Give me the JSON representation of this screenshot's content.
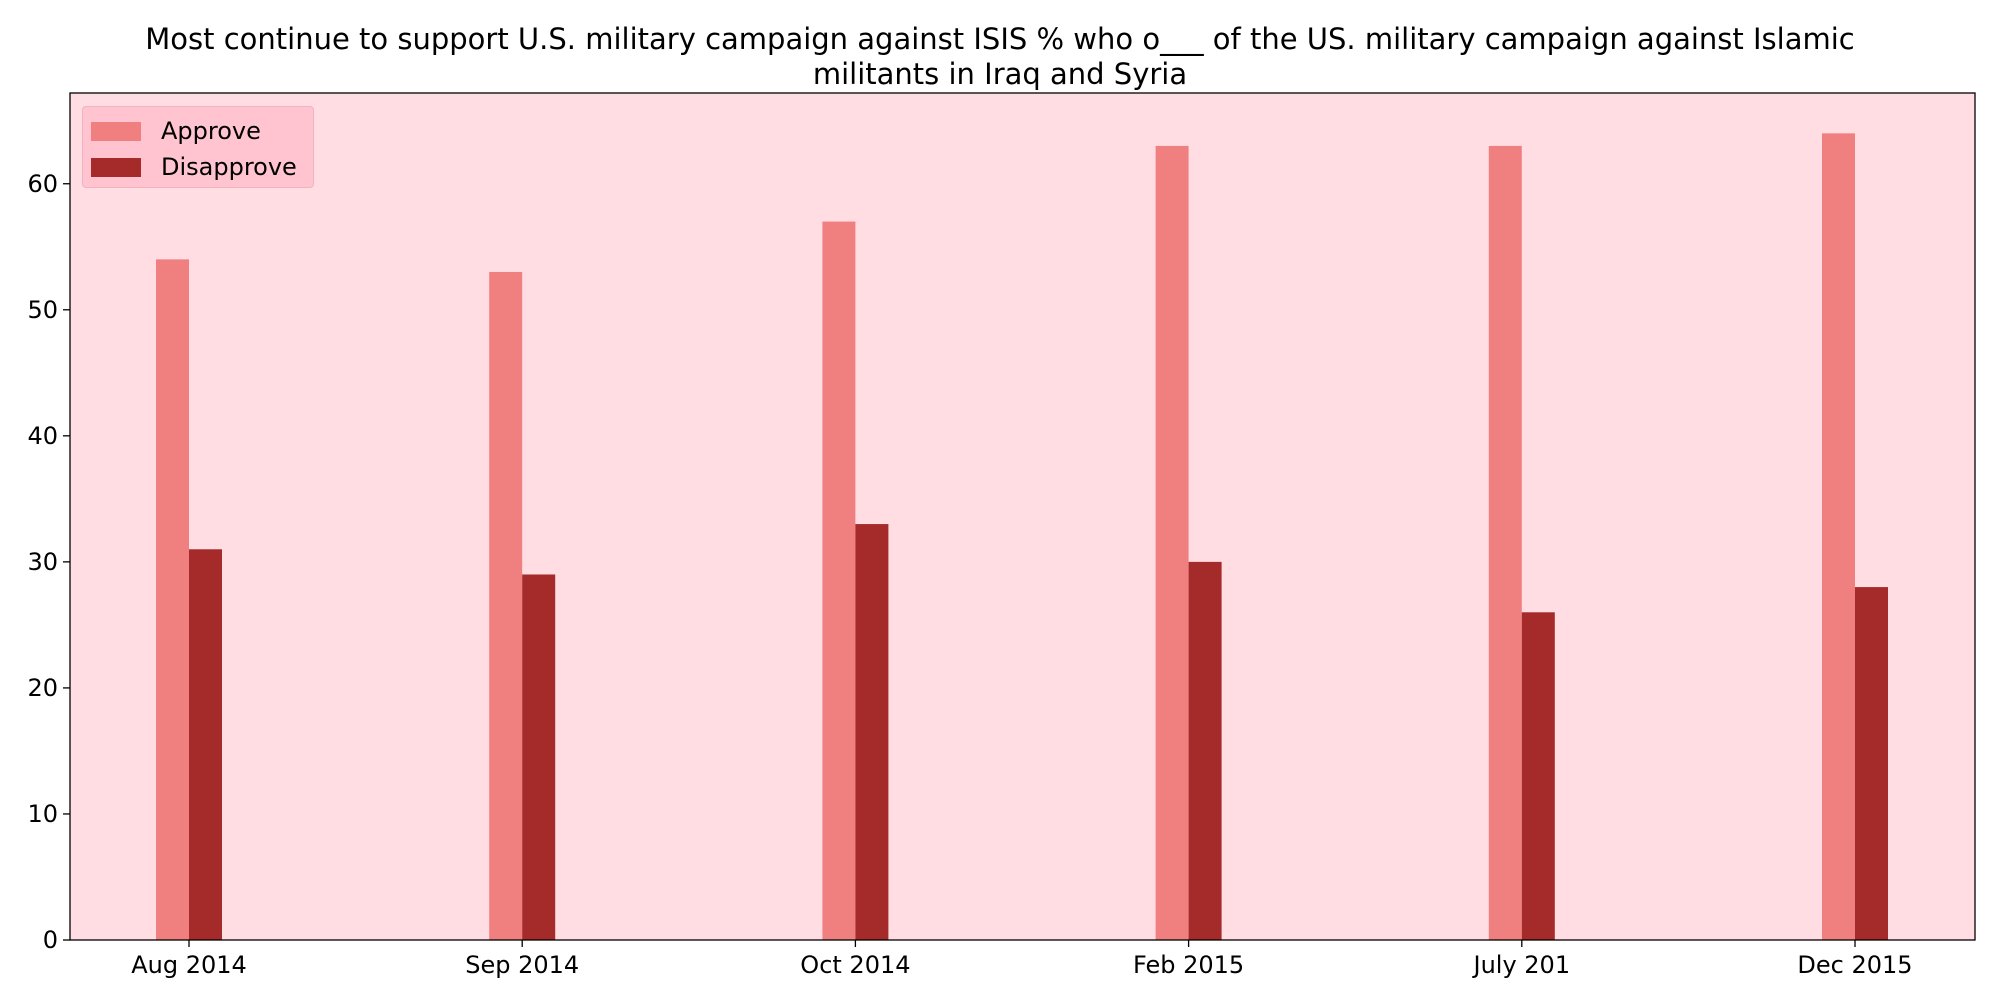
{
  "chart_data": {
    "type": "bar",
    "title_lines": [
      "Most continue to support U.S. military campaign against ISIS % who o___ of the US. military campaign against Islamic",
      "militants in Iraq and Syria"
    ],
    "xlabel": "",
    "ylabel": "",
    "categories": [
      "Aug 2014",
      "Sep 2014",
      "Oct 2014",
      "Feb 2015",
      "July 201",
      "Dec 2015"
    ],
    "series": [
      {
        "name": "Approve",
        "values": [
          54,
          53,
          57,
          63,
          63,
          64
        ],
        "color": "#f08080"
      },
      {
        "name": "Disapprove",
        "values": [
          31,
          29,
          33,
          30,
          26,
          28
        ],
        "color": "#a52a2a"
      }
    ],
    "ylim": [
      0,
      67.2
    ],
    "yticks": [
      0,
      10,
      20,
      30,
      40,
      50,
      60
    ],
    "grid": false,
    "legend_position": "top-left",
    "plot_background": "#ffdde3"
  }
}
